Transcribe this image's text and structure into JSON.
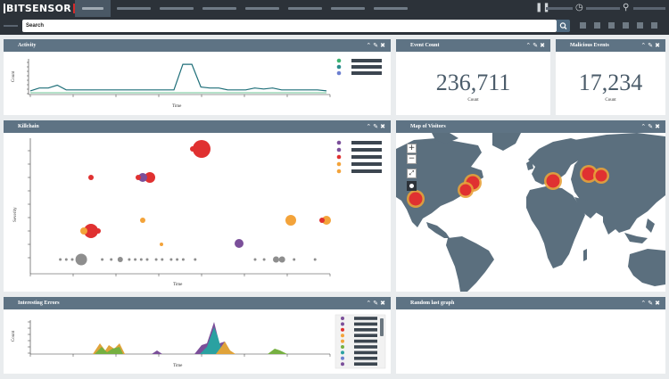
{
  "app": {
    "logo_text": "BITSENSOR"
  },
  "search": {
    "value": "Search"
  },
  "widgets": {
    "activity": {
      "title": "Activity",
      "ylabel": "Count",
      "xlabel": "Time"
    },
    "event_count": {
      "title": "Event Count",
      "value": "236,711",
      "caption": "Count"
    },
    "malicious_events": {
      "title": "Malicious Events",
      "value": "17,234",
      "caption": "Count"
    },
    "killchain": {
      "title": "Killchain",
      "ylabel": "Severity",
      "xlabel": "Time"
    },
    "map": {
      "title": "Map of Visitors"
    },
    "interesting_errors": {
      "title": "Interesting Errors",
      "ylabel": "Count",
      "xlabel": "Time"
    },
    "random": {
      "title": "Random last graph"
    }
  },
  "controls": {
    "collapse_icon": "chevron-up-icon",
    "edit_icon": "pencil-icon",
    "close_icon": "close-icon"
  },
  "colors": {
    "topbar": "#2c3239",
    "header": "#5e7384",
    "teal": "#1d6e78",
    "red": "#e03131",
    "orange": "#f3a33a",
    "purple": "#7b4f9a",
    "grey": "#8e8e8e",
    "map_land": "#5b6f7e"
  },
  "chart_data": [
    {
      "type": "line",
      "x": [
        0,
        1,
        2,
        3,
        4,
        5,
        6,
        7,
        8,
        9,
        10,
        11,
        12,
        13,
        14,
        15,
        16,
        17,
        18,
        19,
        20,
        21,
        22,
        23,
        24,
        25,
        26,
        27,
        28,
        29,
        30,
        31,
        32,
        33
      ],
      "series": [
        {
          "values": [
            2,
            5,
            5,
            8,
            3,
            3,
            3,
            3,
            3,
            3,
            3,
            3,
            3,
            3,
            3,
            3,
            3,
            30,
            30,
            6,
            5,
            5,
            3,
            3,
            3,
            5,
            4,
            5,
            3,
            3,
            3,
            3,
            3,
            2
          ]
        },
        {
          "values": [
            0,
            0,
            0,
            0,
            0,
            0,
            0,
            0,
            0,
            0,
            0,
            0,
            0,
            0,
            0,
            0,
            0,
            0,
            0,
            0,
            0,
            0,
            0,
            0,
            0,
            0,
            0,
            0,
            0,
            0,
            0,
            0,
            0,
            0
          ]
        }
      ],
      "legend_colors": [
        "#3cb371",
        "#2a8c8c",
        "#6c7fd0"
      ]
    },
    {
      "type": "scatter",
      "series": [
        {
          "points": [
            [
              91,
              5,
              18
            ],
            [
              101,
              5,
              8
            ],
            [
              105,
              5,
              5
            ],
            [
              108,
              6,
              5
            ],
            [
              110,
              6,
              4
            ]
          ]
        },
        {
          "points": [
            [
              13,
              5,
              4
            ],
            [
              27,
              5,
              18
            ],
            [
              39,
              5,
              8
            ],
            [
              21,
              1,
              4
            ],
            [
              40,
              1,
              4
            ],
            [
              43,
              1,
              4
            ]
          ]
        },
        {
          "points": [
            [
              40,
              1,
              4
            ],
            [
              62,
              2,
              5
            ],
            [
              69,
              2,
              5
            ],
            [
              73,
              2,
              5
            ],
            [
              76,
              2,
              5
            ]
          ]
        },
        {
          "points": [
            [
              42,
              3,
              4
            ],
            [
              63,
              3,
              6
            ],
            [
              85,
              3,
              5
            ],
            [
              107,
              3,
              5
            ]
          ]
        },
        {
          "points": [
            [
              10,
              1,
              3
            ],
            [
              12,
              1,
              3
            ],
            [
              14,
              1,
              3
            ],
            [
              17,
              1,
              13
            ],
            [
              24,
              1,
              3
            ],
            [
              27,
              1,
              3
            ],
            [
              30,
              1,
              6
            ],
            [
              33,
              1,
              3
            ],
            [
              35,
              1,
              3
            ],
            [
              37,
              1,
              3
            ],
            [
              39,
              1,
              3
            ],
            [
              42,
              1,
              3
            ],
            [
              44,
              1,
              3
            ],
            [
              47,
              1,
              3
            ],
            [
              49,
              1,
              3
            ],
            [
              51,
              1,
              3
            ],
            [
              55,
              1,
              3
            ],
            [
              75,
              1,
              3
            ],
            [
              78,
              1,
              3
            ],
            [
              82,
              1,
              7
            ],
            [
              84,
              1,
              7
            ],
            [
              88,
              1,
              3
            ],
            [
              95,
              1,
              3
            ]
          ]
        }
      ],
      "legend_colors": [
        "#7b4f9a",
        "#7b4f9a",
        "#e03131",
        "#f3a33a",
        "#f3a33a"
      ]
    },
    {
      "type": "area",
      "legend_colors": [
        "#7b4f9a",
        "#7b4f9a",
        "#e03131",
        "#f3a33a",
        "#f3a33a",
        "#76b041",
        "#2aa1a1",
        "#6c7fd0",
        "#7b4f9a"
      ]
    }
  ]
}
